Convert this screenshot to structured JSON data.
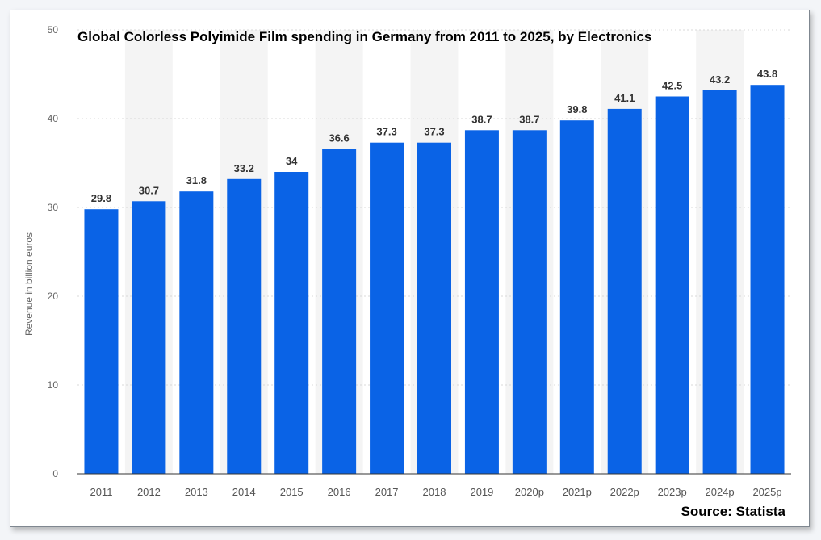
{
  "chart_data": {
    "type": "bar",
    "title": "Global Colorless Polyimide Film spending in Germany from 2011 to 2025, by Electronics",
    "ylabel": "Revenue in billion euros",
    "xlabel": "",
    "categories": [
      "2011",
      "2012",
      "2013",
      "2014",
      "2015",
      "2016",
      "2017",
      "2018",
      "2019",
      "2020p",
      "2021p",
      "2022p",
      "2023p",
      "2024p",
      "2025p"
    ],
    "values": [
      29.8,
      30.7,
      31.8,
      33.2,
      34,
      36.6,
      37.3,
      37.3,
      38.7,
      38.7,
      39.8,
      41.1,
      42.5,
      43.2,
      43.8
    ],
    "value_labels": [
      "29.8",
      "30.7",
      "31.8",
      "33.2",
      "34",
      "36.6",
      "37.3",
      "37.3",
      "38.7",
      "38.7",
      "39.8",
      "41.1",
      "42.5",
      "43.2",
      "43.8"
    ],
    "ylim": [
      0,
      50
    ],
    "yticks": [
      0,
      10,
      20,
      30,
      40,
      50
    ],
    "grid": true,
    "bar_color": "#0a63e6",
    "source": "Source: Statista"
  }
}
